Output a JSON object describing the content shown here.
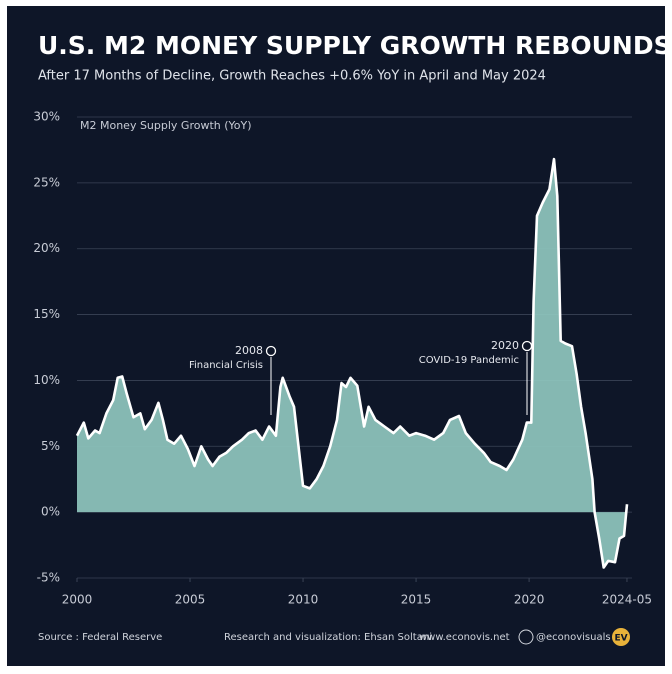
{
  "chart_data": {
    "type": "area",
    "title": "U.S. M2 MONEY SUPPLY GROWTH REBOUNDS",
    "subtitle": "After 17 Months of Decline, Growth Reaches +0.6% YoY in April and May 2024",
    "y_label": "M2 Money Supply Growth (YoY)",
    "x": [
      2000.0,
      2000.3,
      2000.5,
      2000.8,
      2001.0,
      2001.3,
      2001.6,
      2001.8,
      2002.0,
      2002.2,
      2002.5,
      2002.8,
      2003.0,
      2003.3,
      2003.6,
      2003.8,
      2004.0,
      2004.3,
      2004.6,
      2004.9,
      2005.2,
      2005.5,
      2005.8,
      2006.0,
      2006.3,
      2006.6,
      2006.9,
      2007.3,
      2007.6,
      2007.9,
      2008.2,
      2008.5,
      2008.8,
      2009.0,
      2009.1,
      2009.4,
      2009.6,
      2009.8,
      2010.0,
      2010.3,
      2010.6,
      2010.9,
      2011.2,
      2011.5,
      2011.7,
      2011.9,
      2012.1,
      2012.4,
      2012.7,
      2012.9,
      2013.2,
      2013.6,
      2014.0,
      2014.3,
      2014.7,
      2015.0,
      2015.4,
      2015.8,
      2016.2,
      2016.5,
      2016.9,
      2017.2,
      2017.6,
      2018.0,
      2018.3,
      2018.7,
      2019.0,
      2019.3,
      2019.7,
      2019.9,
      2020.1,
      2020.2,
      2020.35,
      2020.6,
      2020.9,
      2021.1,
      2021.25,
      2021.4,
      2021.6,
      2021.9,
      2022.1,
      2022.3,
      2022.5,
      2022.8,
      2022.9,
      2023.1,
      2023.3,
      2023.5,
      2023.8,
      2024.0,
      2024.2,
      2024.33
    ],
    "series": [
      {
        "name": "M2 Money Supply Growth (YoY)",
        "color": "#8fc7be",
        "line_color": "#ffffff",
        "values": [
          5.8,
          6.8,
          5.6,
          6.2,
          6.0,
          7.5,
          8.5,
          10.2,
          10.3,
          9.0,
          7.2,
          7.5,
          6.3,
          7.0,
          8.3,
          7.0,
          5.5,
          5.2,
          5.8,
          4.8,
          3.5,
          5.0,
          4.0,
          3.5,
          4.2,
          4.5,
          5.0,
          5.5,
          6.0,
          6.2,
          5.5,
          6.5,
          5.8,
          9.5,
          10.2,
          8.8,
          8.0,
          5.0,
          2.0,
          1.8,
          2.5,
          3.5,
          5.0,
          7.0,
          9.8,
          9.5,
          10.2,
          9.6,
          6.5,
          8.0,
          7.0,
          6.5,
          6.0,
          6.5,
          5.8,
          6.0,
          5.8,
          5.5,
          6.0,
          7.0,
          7.3,
          6.0,
          5.2,
          4.5,
          3.8,
          3.5,
          3.2,
          4.0,
          5.5,
          6.8,
          6.8,
          16,
          22.5,
          23.5,
          24.5,
          26.8,
          24,
          13.0,
          12.8,
          12.6,
          10.5,
          8.0,
          6.0,
          2.5,
          0.0,
          -2.0,
          -4.2,
          -3.7,
          -3.8,
          -2.0,
          -1.8,
          0.6
        ]
      }
    ],
    "xlim": [
      2000,
      2024.42
    ],
    "xticks": [
      2000,
      2005,
      2010,
      2015,
      2020,
      {
        "value": 2024.33,
        "label": "2024-05"
      }
    ],
    "ylim": [
      -5,
      30
    ],
    "yticks": [
      {
        "value": -5,
        "label": "-5%"
      },
      {
        "value": 0,
        "label": "0%"
      },
      {
        "value": 5,
        "label": "5%"
      },
      {
        "value": 10,
        "label": "10%"
      },
      {
        "value": 15,
        "label": "15%"
      },
      {
        "value": 20,
        "label": "20%"
      },
      {
        "value": 25,
        "label": "25%"
      },
      {
        "value": 30,
        "label": "30%"
      }
    ],
    "grid": true,
    "annotations": [
      {
        "year": "2008",
        "text": "Financial Crisis"
      },
      {
        "year": "2020",
        "text": "COVID-19 Pandemic"
      }
    ],
    "footer": {
      "source": "Source : Federal Reserve",
      "credit": "Research and visualization: Ehsan Soltani",
      "site": "www.econovis.net",
      "handle": "@econovisuals",
      "logo": "EV"
    }
  }
}
